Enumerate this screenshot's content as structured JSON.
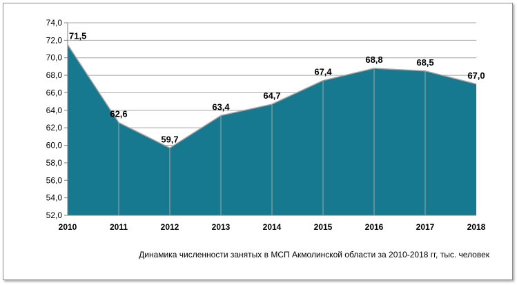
{
  "chart_data": {
    "type": "area",
    "title": "Динамика  численности занятых в МСП  Акмолинской  области за 2010-2018 гг, тыс. человек",
    "categories": [
      "2010",
      "2011",
      "2012",
      "2013",
      "2014",
      "2015",
      "2016",
      "2017",
      "2018"
    ],
    "values": [
      71.5,
      62.6,
      59.7,
      63.4,
      64.7,
      67.4,
      68.8,
      68.5,
      67.0
    ],
    "data_labels": [
      "71,5",
      "62,6",
      "59,7",
      "63,4",
      "64,7",
      "67,4",
      "68,8",
      "68,5",
      "67,0"
    ],
    "yticks": [
      "52,0",
      "54,0",
      "56,0",
      "58,0",
      "60,0",
      "62,0",
      "64,0",
      "66,0",
      "68,0",
      "70,0",
      "72,0",
      "74,0"
    ],
    "ylim": [
      52,
      74
    ],
    "xlabel": "",
    "ylabel": "",
    "grid": true,
    "legend": "none",
    "fill_color": "#17798f",
    "line_color": "#a6a6a6"
  }
}
